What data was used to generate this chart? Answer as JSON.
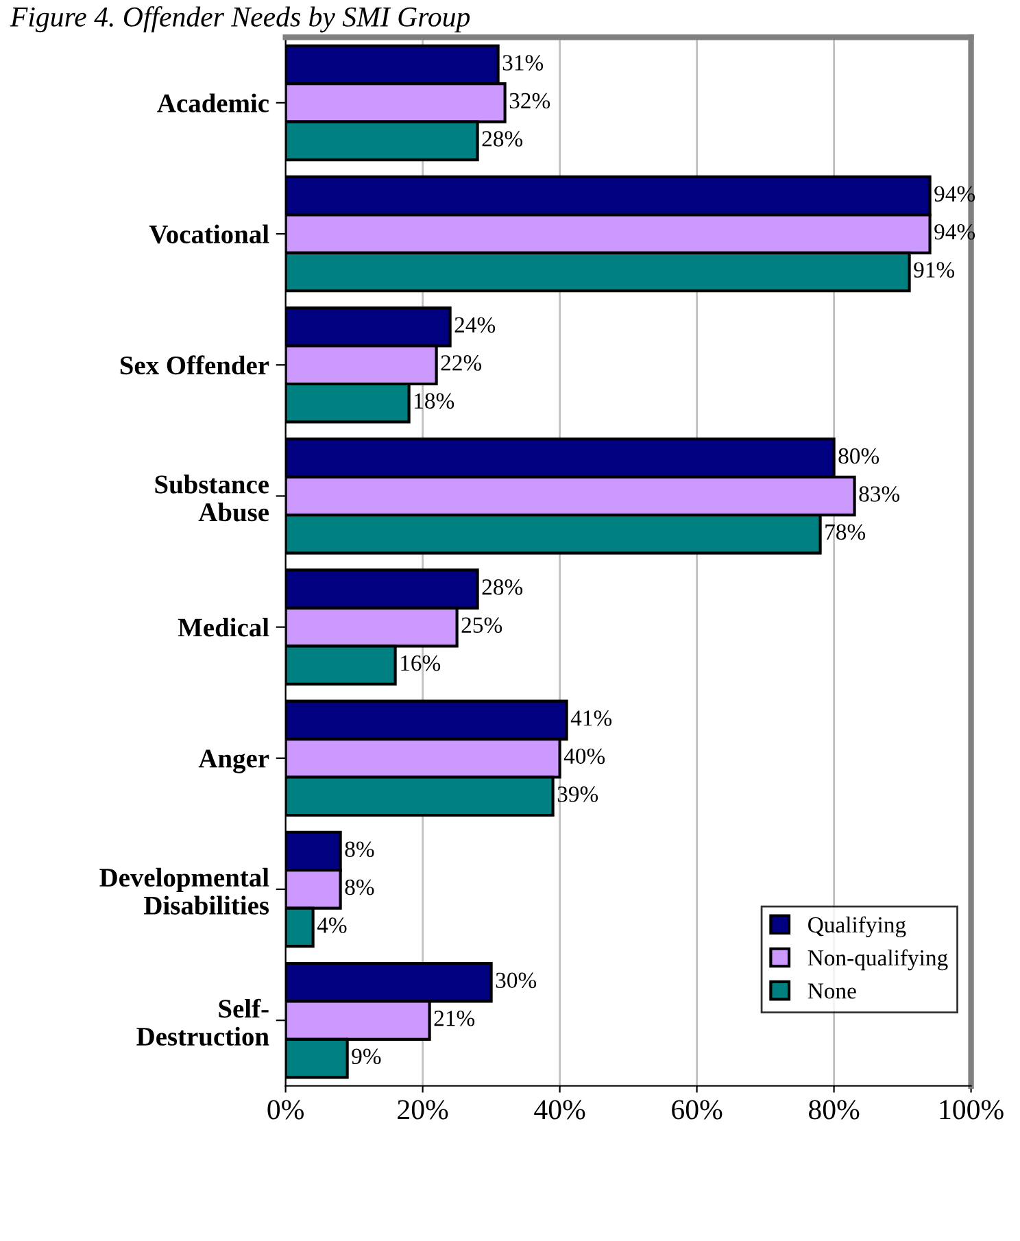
{
  "chart_data": {
    "type": "bar",
    "orientation": "horizontal",
    "title": "Figure 4. Offender Needs by SMI Group",
    "categories": [
      "Academic",
      "Vocational",
      "Sex Offender",
      "Substance\nAbuse",
      "Medical",
      "Anger",
      "Developmental\nDisabilities",
      "Self-\nDestruction"
    ],
    "series": [
      {
        "name": "Qualifying",
        "color": "#000080",
        "values": [
          31,
          94,
          24,
          80,
          28,
          41,
          8,
          30
        ],
        "value_labels": [
          "31%",
          "94%",
          "24%",
          "80%",
          "28%",
          "41%",
          "8%",
          "30%"
        ]
      },
      {
        "name": "Non-qualifying",
        "color": "#cc99ff",
        "values": [
          32,
          94,
          22,
          83,
          25,
          40,
          8,
          21
        ],
        "value_labels": [
          "32%",
          "94%",
          "22%",
          "83%",
          "25%",
          "40%",
          "8%",
          "21%"
        ]
      },
      {
        "name": "None",
        "color": "#008080",
        "values": [
          28,
          91,
          18,
          78,
          16,
          39,
          4,
          9
        ],
        "value_labels": [
          "28%",
          "91%",
          "18%",
          "78%",
          "16%",
          "39%",
          "4%",
          "9%"
        ]
      }
    ],
    "xlim": [
      0,
      100
    ],
    "xticks": [
      {
        "value": 0,
        "label": "0%"
      },
      {
        "value": 20,
        "label": "20%"
      },
      {
        "value": 40,
        "label": "40%"
      },
      {
        "value": 60,
        "label": "60%"
      },
      {
        "value": 80,
        "label": "80%"
      },
      {
        "value": 100,
        "label": "100%"
      }
    ],
    "grid": "x",
    "legend": "bottom right"
  }
}
